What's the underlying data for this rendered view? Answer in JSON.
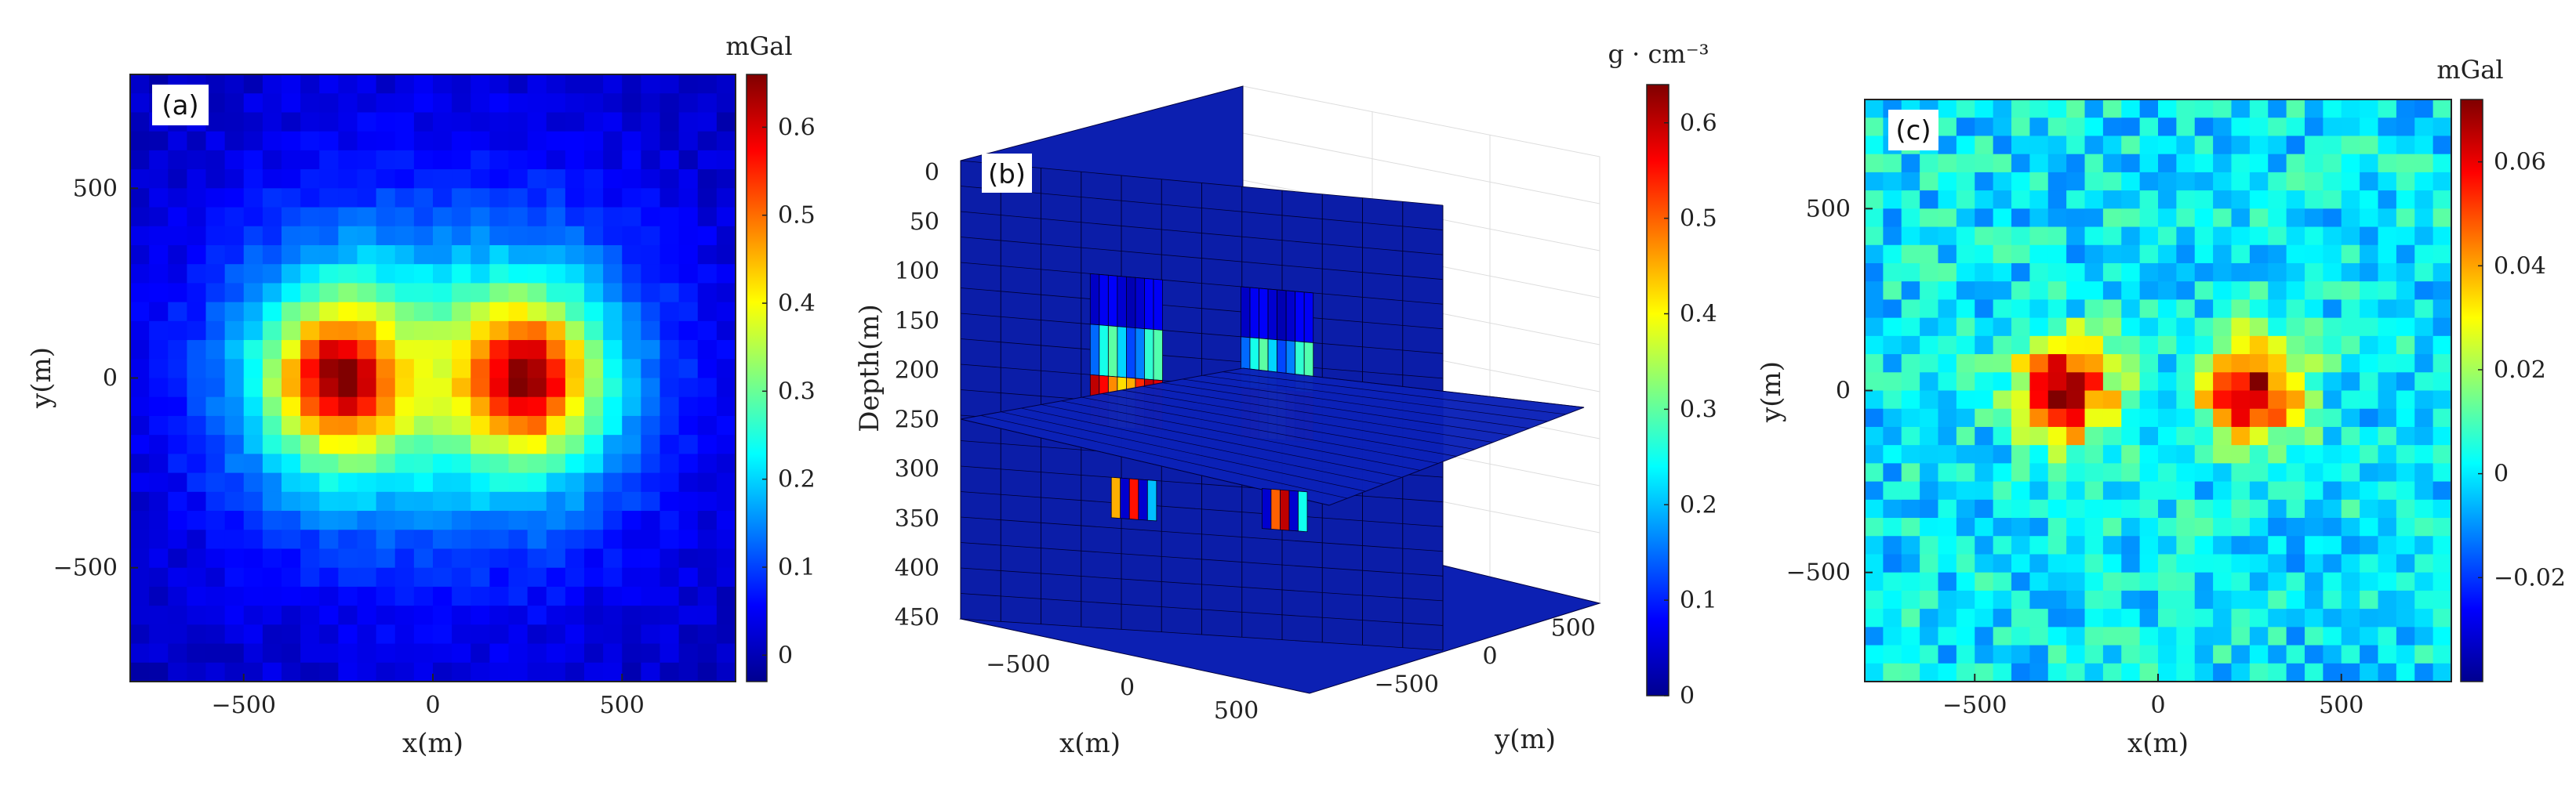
{
  "chart_data": [
    {
      "type": "heatmap",
      "panel_label": "(a)",
      "xlabel": "x(m)",
      "ylabel": "y(m)",
      "xlim": [
        -800,
        800
      ],
      "ylim": [
        -800,
        800
      ],
      "xticks": [
        -500,
        0,
        500
      ],
      "xtick_labels": [
        "−500",
        "0",
        "500"
      ],
      "yticks": [
        -500,
        0,
        500
      ],
      "ytick_labels": [
        "−500",
        "0",
        "500"
      ],
      "colorbar": {
        "unit": "mGal",
        "range": [
          -0.03,
          0.66
        ],
        "ticks": [
          0,
          0.1,
          0.2,
          0.3,
          0.4,
          0.5,
          0.6
        ],
        "tick_labels": [
          "0",
          "0.1",
          "0.2",
          "0.3",
          "0.4",
          "0.5",
          "0.6"
        ]
      },
      "grid_size": 32,
      "sources": [
        {
          "x": -250,
          "y": 0,
          "peak": 0.62
        },
        {
          "x": 250,
          "y": 0,
          "peak": 0.62
        }
      ],
      "background": 0.0,
      "noise": 0.02
    },
    {
      "type": "heatmap",
      "panel_label": "(b)",
      "xlabel": "x(m)",
      "ylabel": "y(m)",
      "zlabel": "Depth(m)",
      "xticks": [
        -500,
        0,
        500
      ],
      "xtick_labels": [
        "−500",
        "0",
        "500"
      ],
      "yticks": [
        -500,
        0,
        500
      ],
      "ytick_labels": [
        "−500",
        "0",
        "500"
      ],
      "zticks": [
        0,
        50,
        100,
        150,
        200,
        250,
        300,
        350,
        400,
        450
      ],
      "ztick_labels": [
        "0",
        "50",
        "100",
        "150",
        "200",
        "250",
        "300",
        "350",
        "400",
        "450"
      ],
      "colorbar": {
        "unit": "g · cm⁻³",
        "range": [
          0,
          0.64
        ],
        "ticks": [
          0,
          0.1,
          0.2,
          0.3,
          0.4,
          0.5,
          0.6
        ],
        "tick_labels": [
          "0",
          "0.1",
          "0.2",
          "0.3",
          "0.4",
          "0.5",
          "0.6"
        ]
      },
      "slices": [
        {
          "plane": "y",
          "value": 0
        },
        {
          "plane": "z",
          "value": 250
        },
        {
          "plane": "z",
          "value": 450
        }
      ],
      "anomalies": [
        {
          "x": -250,
          "depth_range": [
            125,
            250
          ],
          "density_max": 0.6
        },
        {
          "x": 250,
          "depth_range": [
            125,
            250
          ],
          "density_max": 0.6
        }
      ]
    },
    {
      "type": "heatmap",
      "panel_label": "(c)",
      "xlabel": "x(m)",
      "ylabel": "y(m)",
      "xlim": [
        -800,
        800
      ],
      "ylim": [
        -800,
        800
      ],
      "xticks": [
        -500,
        0,
        500
      ],
      "xtick_labels": [
        "−500",
        "0",
        "500"
      ],
      "yticks": [
        -500,
        0,
        500
      ],
      "ytick_labels": [
        "−500",
        "0",
        "500"
      ],
      "colorbar": {
        "unit": "mGal",
        "range": [
          -0.04,
          0.072
        ],
        "ticks": [
          -0.02,
          0,
          0.02,
          0.04,
          0.06
        ],
        "tick_labels": [
          "−0.02",
          "0",
          "0.02",
          "0.04",
          "0.06"
        ]
      },
      "grid_size": 32,
      "sources": [
        {
          "x": -250,
          "y": 0,
          "peak": 0.07
        },
        {
          "x": 250,
          "y": 0,
          "peak": 0.07
        }
      ],
      "background": 0.0,
      "noise": 0.012
    }
  ]
}
